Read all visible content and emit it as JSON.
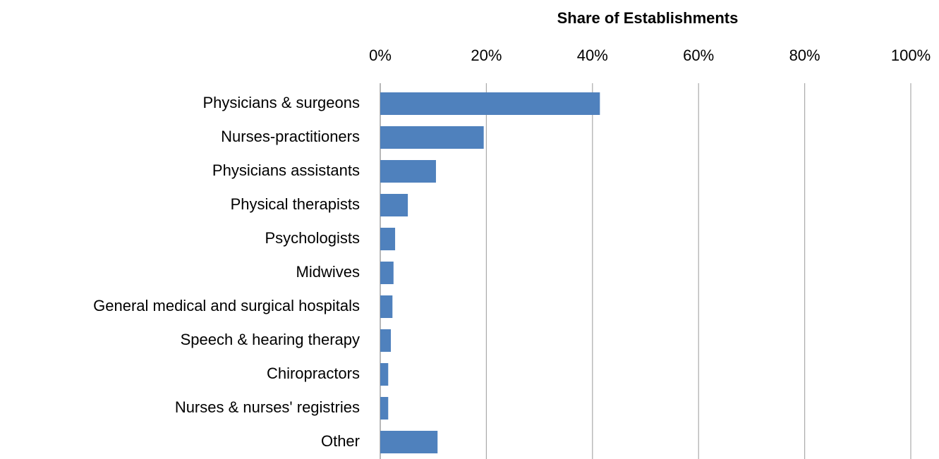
{
  "chart_data": {
    "type": "bar",
    "orientation": "horizontal",
    "title": "Share of Establishments",
    "categories": [
      "Physicians & surgeons",
      "Nurses-practitioners",
      "Physicians assistants",
      "Physical therapists",
      "Psychologists",
      "Midwives",
      "General medical and surgical hospitals",
      "Speech & hearing therapy",
      "Chiropractors",
      "Nurses & nurses' registries",
      "Other"
    ],
    "values": [
      41.4,
      19.5,
      10.5,
      5.2,
      2.8,
      2.5,
      2.3,
      2.0,
      1.5,
      1.5,
      10.8
    ],
    "color": "#4f81bd",
    "xlim": [
      0,
      100
    ],
    "xticks": [
      {
        "value": 0,
        "label": "0%"
      },
      {
        "value": 20,
        "label": "20%"
      },
      {
        "value": 40,
        "label": "40%"
      },
      {
        "value": 60,
        "label": "60%"
      },
      {
        "value": 80,
        "label": "80%"
      },
      {
        "value": 100,
        "label": "100%"
      }
    ],
    "grid": true
  }
}
